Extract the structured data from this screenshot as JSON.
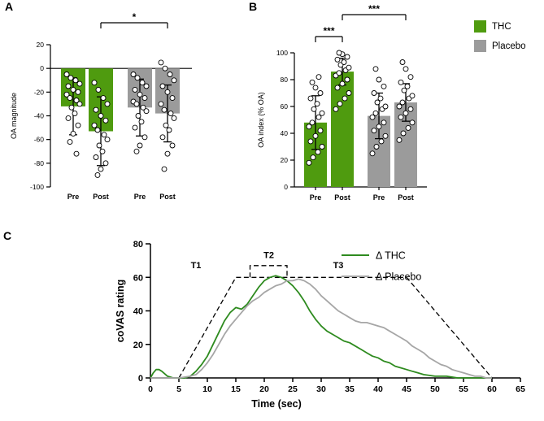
{
  "colors": {
    "thc": "#4f9b0f",
    "placebo": "#9b9b9b"
  },
  "legend": {
    "items": [
      {
        "label": "THC",
        "color": "#4f9b0f"
      },
      {
        "label": "Placebo",
        "color": "#9b9b9b"
      }
    ]
  },
  "chart_data": [
    {
      "panel": "A",
      "type": "bar",
      "ylabel": "OA magnitude",
      "ylim": [
        -100,
        20
      ],
      "yticks": [
        20,
        0,
        -20,
        -40,
        -60,
        -80,
        -100
      ],
      "categories": [
        "Pre",
        "Post",
        "Pre",
        "Post"
      ],
      "groups": [
        "THC",
        "THC",
        "Placebo",
        "Placebo"
      ],
      "bar_colors": [
        "thc",
        "thc",
        "placebo",
        "placebo"
      ],
      "values": [
        -32,
        -53,
        -33,
        -38
      ],
      "sd": [
        24,
        29,
        24,
        24
      ],
      "significance": [
        {
          "from": 1,
          "to": 3,
          "label": "*"
        }
      ],
      "scatter": [
        [
          -5,
          -8,
          -10,
          -13,
          -15,
          -18,
          -20,
          -22,
          -25,
          -27,
          -30,
          -33,
          -38,
          -42,
          -48,
          -55,
          -62,
          -72
        ],
        [
          -12,
          -18,
          -25,
          -30,
          -35,
          -40,
          -44,
          -48,
          -52,
          -56,
          -60,
          -65,
          -70,
          -75,
          -80,
          -85,
          -90
        ],
        [
          -5,
          -8,
          -12,
          -15,
          -18,
          -22,
          -25,
          -28,
          -30,
          -33,
          -36,
          -40,
          -45,
          -50,
          -58,
          -65,
          -70
        ],
        [
          5,
          0,
          -5,
          -10,
          -15,
          -20,
          -25,
          -30,
          -35,
          -38,
          -42,
          -48,
          -52,
          -58,
          -65,
          -72,
          -85
        ]
      ]
    },
    {
      "panel": "B",
      "type": "bar",
      "ylabel": "OA index (% OA)",
      "ylim": [
        0,
        100
      ],
      "yticks": [
        0,
        20,
        40,
        60,
        80,
        100
      ],
      "categories": [
        "Pre",
        "Post",
        "Pre",
        "Post"
      ],
      "groups": [
        "THC",
        "THC",
        "Placebo",
        "Placebo"
      ],
      "bar_colors": [
        "thc",
        "thc",
        "placebo",
        "placebo"
      ],
      "values": [
        48,
        86,
        53,
        63
      ],
      "sd": [
        20,
        10,
        17,
        14
      ],
      "significance": [
        {
          "from": 0,
          "to": 1,
          "label": "***"
        },
        {
          "from": 1,
          "to": 3,
          "label": "***"
        }
      ],
      "scatter": [
        [
          18,
          22,
          26,
          30,
          34,
          38,
          42,
          45,
          48,
          52,
          55,
          58,
          62,
          66,
          70,
          74,
          78,
          82
        ],
        [
          58,
          62,
          66,
          70,
          74,
          77,
          80,
          83,
          85,
          87,
          89,
          91,
          93,
          95,
          97,
          99,
          100
        ],
        [
          25,
          30,
          34,
          38,
          42,
          45,
          48,
          52,
          55,
          58,
          60,
          63,
          66,
          70,
          75,
          80,
          88
        ],
        [
          35,
          40,
          44,
          48,
          52,
          55,
          58,
          60,
          63,
          66,
          68,
          72,
          75,
          78,
          82,
          88,
          93
        ]
      ]
    },
    {
      "panel": "C",
      "type": "line",
      "xlabel": "Time (sec)",
      "ylabel": "coVAS rating",
      "xlim": [
        0,
        65
      ],
      "ylim": [
        0,
        80
      ],
      "xticks": [
        0,
        5,
        10,
        15,
        20,
        25,
        30,
        35,
        40,
        45,
        50,
        55,
        60,
        65
      ],
      "yticks": [
        0,
        20,
        40,
        60,
        80
      ],
      "series": [
        {
          "name": "Δ THC",
          "color": "#2e8b1f",
          "points": [
            [
              0,
              0
            ],
            [
              0.5,
              3
            ],
            [
              1,
              5
            ],
            [
              1.5,
              5
            ],
            [
              2,
              4
            ],
            [
              3,
              1
            ],
            [
              4,
              0
            ],
            [
              5,
              0
            ],
            [
              6,
              0
            ],
            [
              7,
              1
            ],
            [
              8,
              4
            ],
            [
              9,
              8
            ],
            [
              10,
              13
            ],
            [
              11,
              20
            ],
            [
              12,
              27
            ],
            [
              13,
              34
            ],
            [
              14,
              39
            ],
            [
              15,
              42
            ],
            [
              16,
              41
            ],
            [
              17,
              44
            ],
            [
              18,
              49
            ],
            [
              19,
              54
            ],
            [
              20,
              58
            ],
            [
              21,
              60
            ],
            [
              22,
              61
            ],
            [
              23,
              60
            ],
            [
              24,
              58
            ],
            [
              25,
              55
            ],
            [
              26,
              51
            ],
            [
              27,
              46
            ],
            [
              28,
              40
            ],
            [
              29,
              35
            ],
            [
              30,
              31
            ],
            [
              31,
              28
            ],
            [
              32,
              26
            ],
            [
              33,
              24
            ],
            [
              34,
              22
            ],
            [
              35,
              21
            ],
            [
              36,
              19
            ],
            [
              37,
              17
            ],
            [
              38,
              15
            ],
            [
              39,
              13
            ],
            [
              40,
              12
            ],
            [
              41,
              10
            ],
            [
              42,
              9
            ],
            [
              43,
              7
            ],
            [
              44,
              6
            ],
            [
              45,
              5
            ],
            [
              46,
              4
            ],
            [
              47,
              3
            ],
            [
              48,
              2
            ],
            [
              50,
              1
            ],
            [
              52,
              1
            ],
            [
              54,
              0
            ],
            [
              57,
              0
            ],
            [
              60,
              0
            ]
          ]
        },
        {
          "name": "Δ Placebo",
          "color": "#a6a6a6",
          "points": [
            [
              0,
              0
            ],
            [
              3,
              0
            ],
            [
              5,
              0
            ],
            [
              7,
              1
            ],
            [
              8,
              2
            ],
            [
              9,
              5
            ],
            [
              10,
              9
            ],
            [
              11,
              14
            ],
            [
              12,
              20
            ],
            [
              13,
              26
            ],
            [
              14,
              31
            ],
            [
              15,
              35
            ],
            [
              16,
              39
            ],
            [
              17,
              43
            ],
            [
              18,
              46
            ],
            [
              19,
              48
            ],
            [
              20,
              51
            ],
            [
              21,
              53
            ],
            [
              22,
              55
            ],
            [
              23,
              56
            ],
            [
              24,
              58
            ],
            [
              25,
              58
            ],
            [
              26,
              59
            ],
            [
              27,
              58
            ],
            [
              28,
              56
            ],
            [
              29,
              53
            ],
            [
              30,
              49
            ],
            [
              31,
              46
            ],
            [
              32,
              43
            ],
            [
              33,
              40
            ],
            [
              34,
              38
            ],
            [
              35,
              36
            ],
            [
              36,
              34
            ],
            [
              37,
              33
            ],
            [
              38,
              33
            ],
            [
              39,
              32
            ],
            [
              40,
              31
            ],
            [
              41,
              30
            ],
            [
              42,
              28
            ],
            [
              43,
              26
            ],
            [
              44,
              24
            ],
            [
              45,
              22
            ],
            [
              46,
              19
            ],
            [
              47,
              17
            ],
            [
              48,
              15
            ],
            [
              49,
              12
            ],
            [
              50,
              10
            ],
            [
              51,
              8
            ],
            [
              52,
              7
            ],
            [
              53,
              5
            ],
            [
              54,
              4
            ],
            [
              55,
              3
            ],
            [
              56,
              2
            ],
            [
              57,
              1
            ],
            [
              58,
              1
            ],
            [
              59,
              0
            ],
            [
              60,
              0
            ]
          ]
        }
      ],
      "stimulus": {
        "outline": [
          [
            5,
            0
          ],
          [
            15,
            60
          ],
          [
            45,
            60
          ],
          [
            60,
            0
          ]
        ],
        "t2_bracket": [
          [
            17.5,
            60
          ],
          [
            17.5,
            67
          ],
          [
            24,
            67
          ],
          [
            24,
            60
          ]
        ],
        "phase_labels": [
          {
            "text": "T1",
            "t": 8,
            "v": 65.5
          },
          {
            "text": "T2",
            "t": 20.8,
            "v": 71.5
          },
          {
            "text": "T3",
            "t": 33,
            "v": 65.5
          }
        ]
      }
    }
  ]
}
